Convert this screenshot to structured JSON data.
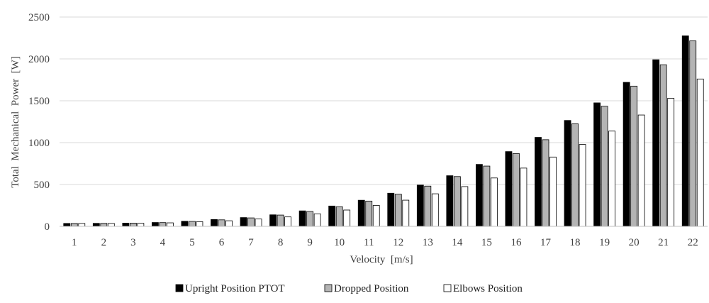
{
  "chart_data": {
    "type": "bar",
    "title": "",
    "xlabel": "Velocity  [m/s]",
    "ylabel": "Total  Mechanical  Power  [W]",
    "ylim": [
      0,
      2500
    ],
    "yticks": [
      0,
      500,
      1000,
      1500,
      2000,
      2500
    ],
    "grid": true,
    "legend_position": "bottom",
    "categories": [
      "1",
      "2",
      "3",
      "4",
      "5",
      "6",
      "7",
      "8",
      "9",
      "10",
      "11",
      "12",
      "13",
      "14",
      "15",
      "16",
      "17",
      "18",
      "19",
      "20",
      "21",
      "22"
    ],
    "series": [
      {
        "name": "Upright Position PTOT",
        "color": "#000000",
        "stroke": "#000000",
        "values": [
          35,
          36,
          39,
          46,
          61,
          82,
          105,
          138,
          185,
          243,
          312,
          396,
          493,
          605,
          740,
          893,
          1063,
          1265,
          1475,
          1720,
          1990,
          2275
        ]
      },
      {
        "name": "Dropped Position",
        "color": "#b4b4b4",
        "stroke": "#000000",
        "values": [
          35,
          36,
          39,
          45,
          59,
          78,
          101,
          135,
          178,
          234,
          302,
          384,
          481,
          595,
          720,
          870,
          1035,
          1225,
          1435,
          1675,
          1930,
          2215
        ]
      },
      {
        "name": "Elbows Position",
        "color": "#ffffff",
        "stroke": "#000000",
        "values": [
          35,
          35,
          37,
          42,
          56,
          67,
          88,
          113,
          150,
          195,
          250,
          313,
          389,
          475,
          578,
          696,
          828,
          978,
          1138,
          1330,
          1530,
          1760
        ]
      }
    ]
  }
}
